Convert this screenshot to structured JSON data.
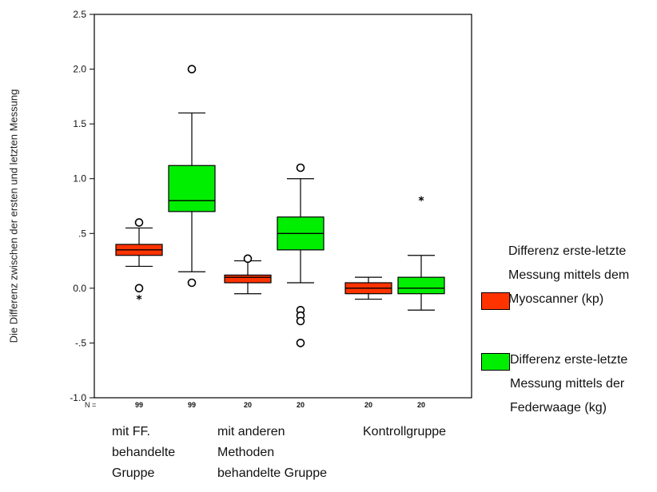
{
  "chart_data": {
    "type": "boxplot",
    "ylabel": "Die Differenz zwischen der ersten und letzten Messung",
    "ylim": [
      -1.0,
      2.5
    ],
    "yticks": [
      -1.0,
      -0.5,
      0.0,
      0.5,
      1.0,
      1.5,
      2.0,
      2.5
    ],
    "ytick_labels": [
      "-1.0",
      "-.5",
      "0.0",
      ".5",
      "1.0",
      "1.5",
      "2.0",
      "2.5"
    ],
    "n_prefix": "N =",
    "groups": [
      {
        "label": "mit FF.\nbehandelte\nGruppe",
        "n": [
          "99",
          "99"
        ]
      },
      {
        "label": "mit anderen\nMethoden\nbehandelte Gruppe",
        "n": [
          "20",
          "20"
        ]
      },
      {
        "label": "Kontrollgruppe",
        "n": [
          "20",
          "20"
        ]
      }
    ],
    "series": [
      {
        "name": "Differenz erste-letzte\nMessung mittels dem\nMyoscanner (kp)",
        "color": "#ff3300",
        "boxes": [
          {
            "group": 0,
            "whisker_low": 0.2,
            "q1": 0.3,
            "median": 0.35,
            "q3": 0.4,
            "whisker_high": 0.55,
            "outliers": [
              0.6,
              0.0
            ],
            "extremes": [
              -0.1
            ]
          },
          {
            "group": 1,
            "whisker_low": -0.05,
            "q1": 0.05,
            "median": 0.1,
            "q3": 0.12,
            "whisker_high": 0.25,
            "outliers": [
              0.27
            ],
            "extremes": []
          },
          {
            "group": 2,
            "whisker_low": -0.1,
            "q1": -0.05,
            "median": 0.0,
            "q3": 0.05,
            "whisker_high": 0.1,
            "outliers": [],
            "extremes": []
          }
        ]
      },
      {
        "name": "Differenz erste-letzte\nMessung mittels der\nFederwaage (kg)",
        "color": "#00ee00",
        "boxes": [
          {
            "group": 0,
            "whisker_low": 0.15,
            "q1": 0.7,
            "median": 0.8,
            "q3": 1.12,
            "whisker_high": 1.6,
            "outliers": [
              2.0,
              0.05
            ],
            "extremes": []
          },
          {
            "group": 1,
            "whisker_low": 0.05,
            "q1": 0.35,
            "median": 0.5,
            "q3": 0.65,
            "whisker_high": 1.0,
            "outliers": [
              1.1,
              -0.2,
              -0.25,
              -0.3,
              -0.5
            ],
            "extremes": []
          },
          {
            "group": 2,
            "whisker_low": -0.2,
            "q1": -0.05,
            "median": 0.0,
            "q3": 0.1,
            "whisker_high": 0.3,
            "outliers": [],
            "extremes": [
              0.8
            ]
          }
        ]
      }
    ]
  }
}
